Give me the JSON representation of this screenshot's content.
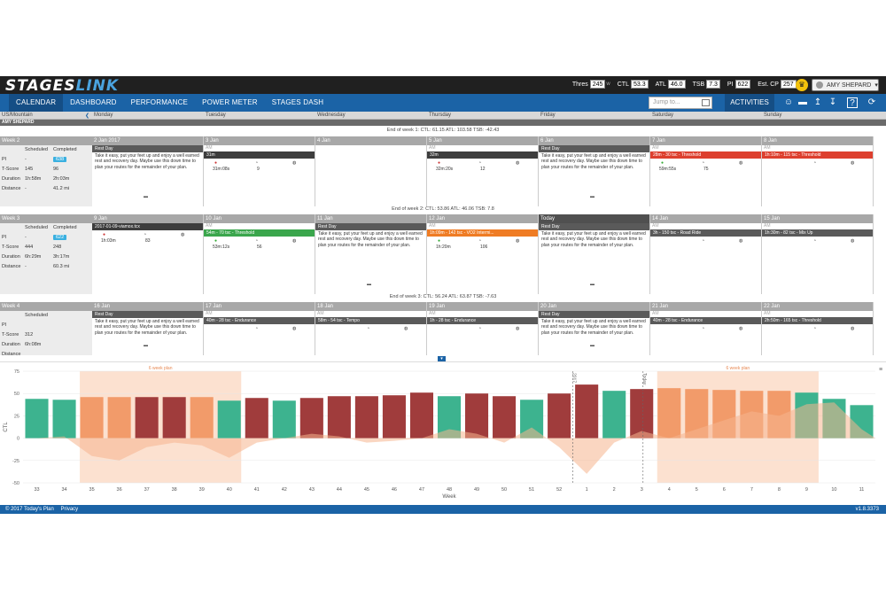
{
  "app": {
    "logo_main": "STAGES",
    "logo_accent": "LINK"
  },
  "topbar": {
    "stats": [
      {
        "label": "Thres",
        "value": "245",
        "unit": "w"
      },
      {
        "label": "CTL",
        "value": "53.3",
        "unit": ""
      },
      {
        "label": "ATL",
        "value": "46.0",
        "unit": ""
      },
      {
        "label": "TSB",
        "value": "7.3",
        "unit": ""
      },
      {
        "label": "PI",
        "value": "622",
        "unit": ""
      },
      {
        "label": "Est. CP",
        "value": "257",
        "unit": "w"
      }
    ],
    "user": "AMY SHEPARD"
  },
  "nav": {
    "tabs": [
      "CALENDAR",
      "DASHBOARD",
      "PERFORMANCE",
      "POWER METER",
      "STAGES DASH"
    ],
    "active": "CALENDAR",
    "jump_placeholder": "Jump to...",
    "activities": "ACTIVITIES",
    "icons": [
      "smile-icon",
      "folder-icon",
      "upload-icon",
      "download-icon",
      "help-icon",
      "refresh-icon"
    ]
  },
  "calendar": {
    "timezone": "US/Mountain",
    "days": [
      "Monday",
      "Tuesday",
      "Wednesday",
      "Thursday",
      "Friday",
      "Saturday",
      "Sunday"
    ],
    "athlete": "AMY SHEPARD",
    "end_of_week": [
      "End of week 1: CTL: 61.15   ATL: 103.58   TSB: -42.43",
      "End of week 2: CTL: 53.86   ATL: 46.06   TSB: 7.8",
      "End of week 3: CTL: 56.24   ATL: 63.87   TSB: -7.63"
    ],
    "summary_headers": {
      "scheduled": "Scheduled",
      "completed": "Completed"
    },
    "summary_labels": {
      "pi": "PI",
      "tscore": "T-Score",
      "duration": "Duration",
      "distance": "Distance"
    },
    "weeks": [
      {
        "label": "Week 2",
        "pi": [
          "-",
          "638"
        ],
        "tscore": [
          "145",
          "96"
        ],
        "duration": [
          "1h:58m",
          "2h:03m"
        ],
        "distance": [
          "-",
          "41.2 mi"
        ],
        "days": [
          {
            "date": "2 Jan 2017",
            "am": "",
            "act": "Rest Day",
            "color": "gray",
            "rest": "Take it easy, put your feet up and enjoy a well earned rest and recovery day. Maybe use this down time to plan your routes for the remainder of your plan.",
            "m1": "",
            "m2": ""
          },
          {
            "date": "3 Jan",
            "am": "AM",
            "act": "31m",
            "color": "dark",
            "rest": "",
            "m1": "31m:08s",
            "m2": "9"
          },
          {
            "date": "4 Jan",
            "am": "",
            "act": "",
            "color": "",
            "rest": "",
            "m1": "",
            "m2": ""
          },
          {
            "date": "5 Jan",
            "am": "AM",
            "act": "32m",
            "color": "dark",
            "rest": "",
            "m1": "32m:20s",
            "m2": "12"
          },
          {
            "date": "6 Jan",
            "am": "",
            "act": "Rest Day",
            "color": "gray",
            "rest": "Take it easy, put your feet up and enjoy a well earned rest and recovery day. Maybe use this down time to plan your routes for the remainder of your plan.",
            "m1": "",
            "m2": ""
          },
          {
            "date": "7 Jan",
            "am": "AM",
            "act": "28m - 30 tsc - Threshold",
            "color": "red",
            "rest": "",
            "m1": "59m:55s",
            "m2": "75"
          },
          {
            "date": "8 Jan",
            "am": "AM",
            "act": "1h:10m - 115 tsc - Threshold",
            "color": "red",
            "rest": "",
            "m1": "",
            "m2": ""
          }
        ]
      },
      {
        "label": "Week 3",
        "pi": [
          "-",
          "622"
        ],
        "tscore": [
          "444",
          "248"
        ],
        "duration": [
          "6h:29m",
          "3h:17m"
        ],
        "distance": [
          "-",
          "60.3 mi"
        ],
        "days": [
          {
            "date": "9 Jan",
            "am": "",
            "act": "2017-01-09-viamox.tcx",
            "color": "dark",
            "rest": "",
            "m1": "1h:03m",
            "m2": "83"
          },
          {
            "date": "10 Jan",
            "am": "AM",
            "act": "54m - 70 tsc - Threshold",
            "color": "green",
            "rest": "",
            "m1": "53m:12s",
            "m2": "56"
          },
          {
            "date": "11 Jan",
            "am": "",
            "act": "Rest Day",
            "color": "gray",
            "rest": "Take it easy, put your feet up and enjoy a well earned rest and recovery day. Maybe use this down time to plan your routes for the remainder of your plan.",
            "m1": "",
            "m2": ""
          },
          {
            "date": "12 Jan",
            "am": "AM",
            "act": "1h:09m - 142 tsc - VO2 Intermi...",
            "color": "orange",
            "rest": "",
            "m1": "1h:20m",
            "m2": "106"
          },
          {
            "date": "Today",
            "am": "",
            "act": "Rest Day",
            "color": "gray",
            "rest": "Take it easy, put your feet up and enjoy a well earned rest and recovery day. Maybe use this down time to plan your routes for the remainder of your plan.",
            "m1": "",
            "m2": "",
            "today": true
          },
          {
            "date": "14 Jan",
            "am": "AM",
            "act": "3h - 150 tsc - Road Ride",
            "color": "gray",
            "rest": "",
            "m1": "",
            "m2": ""
          },
          {
            "date": "15 Jan",
            "am": "AM",
            "act": "1h:30m - 82 tsc - Mix Up",
            "color": "gray",
            "rest": "",
            "m1": "",
            "m2": ""
          }
        ]
      },
      {
        "label": "Week 4",
        "pi": [
          "",
          ""
        ],
        "tscore": [
          "312",
          ""
        ],
        "duration": [
          "6h:08m",
          ""
        ],
        "distance": [
          "",
          ""
        ],
        "days": [
          {
            "date": "16 Jan",
            "am": "",
            "act": "Rest Day",
            "color": "gray",
            "rest": "Take it easy, put your feet up and enjoy a well earned rest and recovery day. Maybe use this down time to plan your routes for the remainder of your plan.",
            "m1": "",
            "m2": ""
          },
          {
            "date": "17 Jan",
            "am": "AM",
            "act": "40m - 28 tsc - Endurance",
            "color": "gray",
            "rest": "",
            "m1": "",
            "m2": ""
          },
          {
            "date": "18 Jan",
            "am": "AM",
            "act": "58m - 54 tsc - Tempo",
            "color": "gray",
            "rest": "",
            "m1": "",
            "m2": ""
          },
          {
            "date": "19 Jan",
            "am": "AM",
            "act": "1h - 28 tsc - Endurance",
            "color": "gray",
            "rest": "",
            "m1": "",
            "m2": ""
          },
          {
            "date": "20 Jan",
            "am": "",
            "act": "Rest Day",
            "color": "gray",
            "rest": "Take it easy, put your feet up and enjoy a well earned rest and recovery day. Maybe use this down time to plan your routes for the remainder of your plan.",
            "m1": "",
            "m2": ""
          },
          {
            "date": "21 Jan",
            "am": "AM",
            "act": "40m - 28 tsc - Endurance",
            "color": "gray",
            "rest": "",
            "m1": "",
            "m2": ""
          },
          {
            "date": "22 Jan",
            "am": "AM",
            "act": "2h:50m - 165 tsc - Threshold",
            "color": "gray",
            "rest": "",
            "m1": "",
            "m2": ""
          }
        ]
      }
    ]
  },
  "chart_data": {
    "type": "bar",
    "title": "",
    "ylabel": "CTL",
    "xlabel": "Week",
    "ylim": [
      -50,
      75
    ],
    "yticks": [
      75,
      50,
      25,
      0,
      -25,
      -50
    ],
    "categories": [
      "33",
      "34",
      "35",
      "36",
      "37",
      "38",
      "39",
      "40",
      "41",
      "42",
      "43",
      "44",
      "45",
      "46",
      "47",
      "48",
      "49",
      "50",
      "51",
      "52",
      "1",
      "2",
      "3",
      "4",
      "5",
      "6",
      "7",
      "8",
      "9",
      "10",
      "11"
    ],
    "values": [
      44,
      43,
      46,
      46,
      46,
      46,
      46,
      42,
      45,
      42,
      45,
      47,
      47,
      48,
      51,
      47,
      50,
      47,
      43,
      50,
      60,
      53,
      55,
      56,
      55,
      54,
      53,
      53,
      51,
      44,
      37
    ],
    "bar_colors": [
      "#3db38f",
      "#3db38f",
      "#f29b6a",
      "#f29b6a",
      "#a03c3c",
      "#a03c3c",
      "#f29b6a",
      "#3db38f",
      "#a03c3c",
      "#3db38f",
      "#a03c3c",
      "#a03c3c",
      "#a03c3c",
      "#a03c3c",
      "#a03c3c",
      "#3db38f",
      "#a03c3c",
      "#a03c3c",
      "#3db38f",
      "#a03c3c",
      "#a03c3c",
      "#3db38f",
      "#a03c3c",
      "#f29b6a",
      "#f29b6a",
      "#f29b6a",
      "#f29b6a",
      "#f29b6a",
      "#3db38f",
      "#3db38f",
      "#3db38f"
    ],
    "tsb_area": [
      0,
      2,
      -20,
      -25,
      -10,
      -5,
      -8,
      -22,
      -5,
      0,
      5,
      2,
      -5,
      -3,
      0,
      10,
      5,
      -5,
      12,
      -10,
      -40,
      -5,
      8,
      0,
      10,
      20,
      30,
      25,
      38,
      40,
      10
    ],
    "plan_bands": [
      {
        "label": "6 week plan",
        "from": "35",
        "to": "40"
      },
      {
        "label": "6 week plan",
        "from": "4",
        "to": "9"
      }
    ],
    "markers": [
      "2017",
      "Today"
    ],
    "grid": true
  },
  "footer": {
    "copyright": "© 2017 Today's Plan",
    "privacy": "Privacy",
    "version": "v1.8.3373"
  }
}
